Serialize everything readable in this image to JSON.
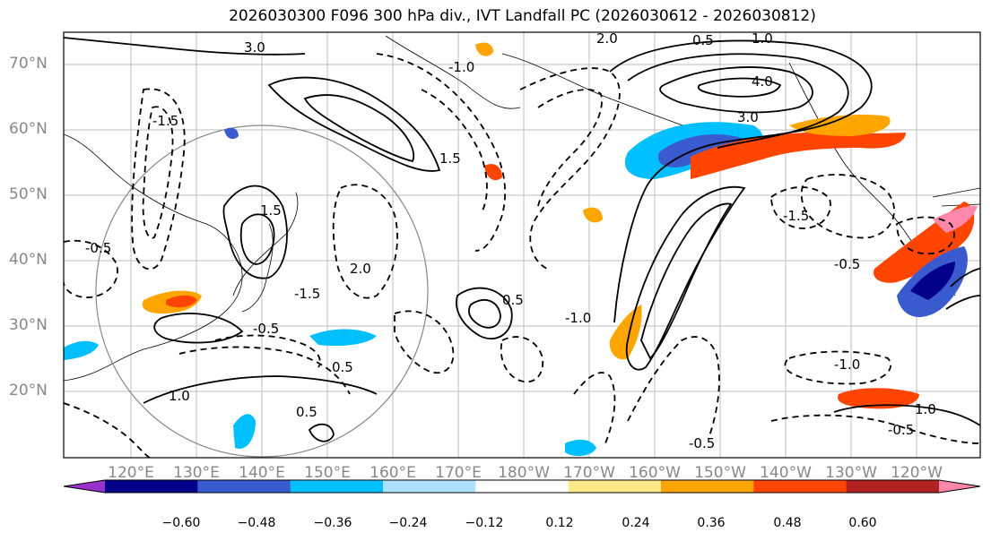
{
  "title": "2026030300 F096 300 hPa div., IVT Landfall PC (2026030612 - 2026030812)",
  "lat_labels": [
    "70°N",
    "60°N",
    "50°N",
    "40°N",
    "30°N",
    "20°N"
  ],
  "lon_labels": [
    "120°E",
    "130°E",
    "140°E",
    "150°E",
    "160°E",
    "170°E",
    "180°W",
    "170°W",
    "160°W",
    "150°W",
    "140°W",
    "130°W",
    "120°W"
  ],
  "contour_labels": [
    "-0.5",
    "-0.5",
    "-1.5",
    "-1.0",
    "-1.5",
    "-0.5",
    "-1.5",
    "-1.0",
    "-0.5",
    "-1.0",
    "-0.5",
    "0.5",
    "0.5",
    "1.0",
    "1.5",
    "2.0",
    "3.0",
    "4.0",
    "1.0",
    "0.5",
    "3.0",
    "2.0",
    "1.5",
    "1.0",
    "0.5"
  ],
  "colorbar": {
    "ticks": [
      "−0.60",
      "−0.48",
      "−0.36",
      "−0.24",
      "−0.12",
      "0.12",
      "0.24",
      "0.36",
      "0.48",
      "0.60"
    ],
    "colors": [
      "#9932cc",
      "#00008b",
      "#3a5bcd",
      "#00bfff",
      "#b0e0ff",
      "#ffffff",
      "#ffe888",
      "#ffa500",
      "#ff4500",
      "#b22222",
      "#ff88aa"
    ]
  }
}
